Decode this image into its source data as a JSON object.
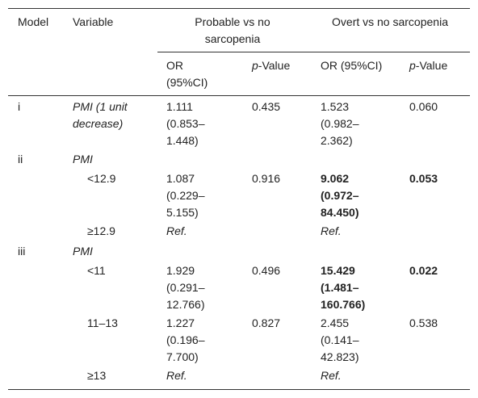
{
  "table": {
    "header": {
      "model": "Model",
      "variable": "Variable",
      "group1": "Probable vs no sarcopenia",
      "group2": "Overt vs no sarcopenia",
      "or1": "OR (95%CI)",
      "p1": "p-Value",
      "or2": "OR (95%CI)",
      "p2": "p-Value"
    },
    "rows": [
      [
        "i",
        "PMI (1 unit decrease)",
        "1.111 (0.853–1.448)",
        "0.435",
        "1.523 (0.982–2.362)",
        "0.060"
      ],
      [
        "ii",
        "PMI"
      ],
      [
        "<12.9",
        "1.087 (0.229–5.155)",
        "0.916",
        "9.062 (0.972–84.450)",
        "0.053"
      ],
      [
        "≥12.9",
        "Ref.",
        "Ref."
      ],
      [
        "iii",
        "PMI"
      ],
      [
        "<11",
        "1.929 (0.291–12.766)",
        "0.496",
        "15.429 (1.481–160.766)",
        "0.022"
      ],
      [
        "11–13",
        "1.227 (0.196–7.700)",
        "0.827",
        "2.455 (0.141–42.823)",
        "0.538"
      ],
      [
        "≥13",
        "Ref.",
        "Ref."
      ]
    ]
  }
}
